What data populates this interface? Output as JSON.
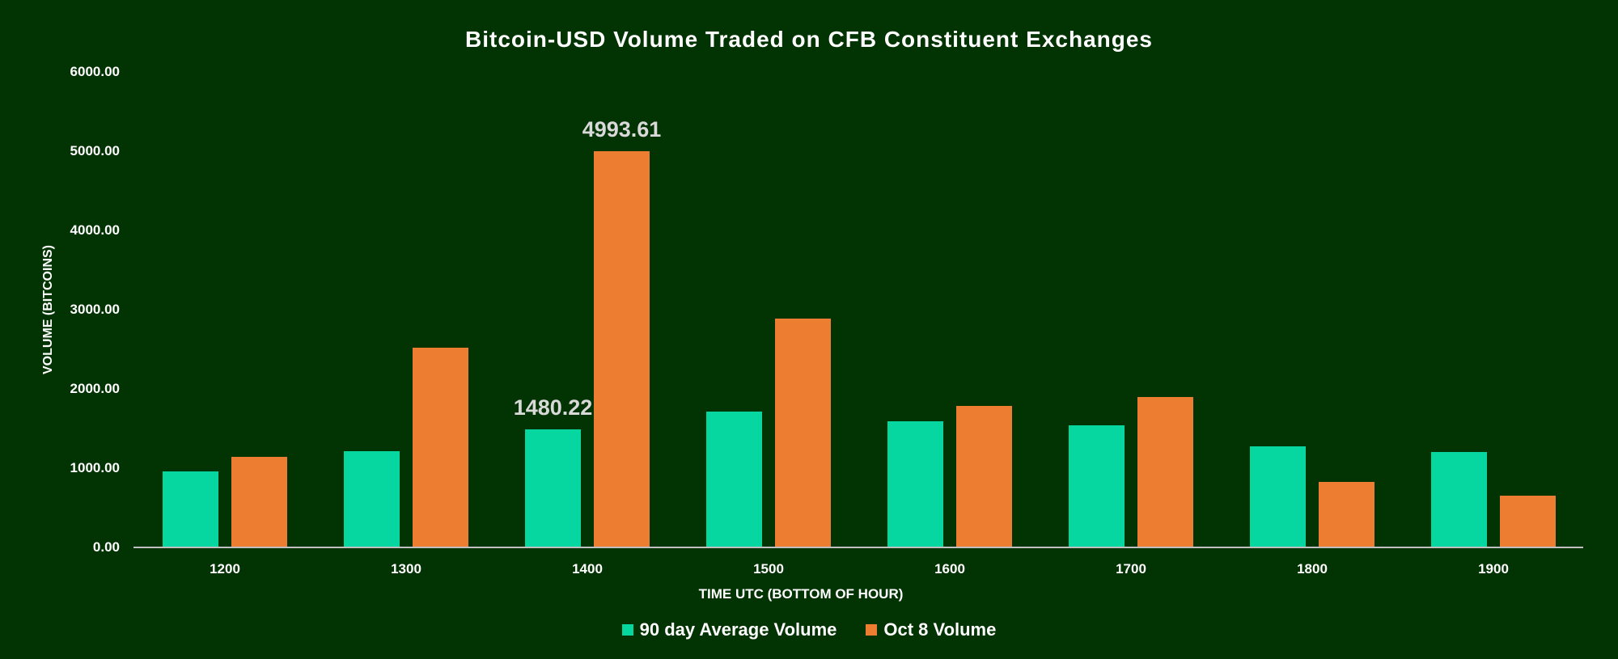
{
  "chart_data": {
    "type": "bar",
    "title": "Bitcoin-USD Volume Traded on CFB Constituent Exchanges",
    "xlabel": "TIME UTC (BOTTOM OF HOUR)",
    "ylabel": "VOLUME (BITCOINS)",
    "ylim": [
      0,
      6000
    ],
    "yticks": [
      "0.00",
      "1000.00",
      "2000.00",
      "3000.00",
      "4000.00",
      "5000.00",
      "6000.00"
    ],
    "categories": [
      "1200",
      "1300",
      "1400",
      "1500",
      "1600",
      "1700",
      "1800",
      "1900"
    ],
    "series": [
      {
        "name": "90 day Average Volume",
        "color": "#06d6a0",
        "values": [
          950,
          1205,
          1480.22,
          1705,
          1580,
          1530,
          1265,
          1195
        ]
      },
      {
        "name": "Oct 8 Volume",
        "color": "#ed7d31",
        "values": [
          1135,
          2510,
          4993.61,
          2880,
          1775,
          1890,
          815,
          645
        ]
      }
    ],
    "annotations": [
      {
        "category": "1400",
        "series": "90 day Average Volume",
        "text": "1480.22"
      },
      {
        "category": "1400",
        "series": "Oct 8 Volume",
        "text": "4993.61"
      }
    ],
    "grid": false,
    "legend_position": "bottom"
  },
  "colors": {
    "background": "#023302",
    "axis": "#bfbfbf"
  }
}
